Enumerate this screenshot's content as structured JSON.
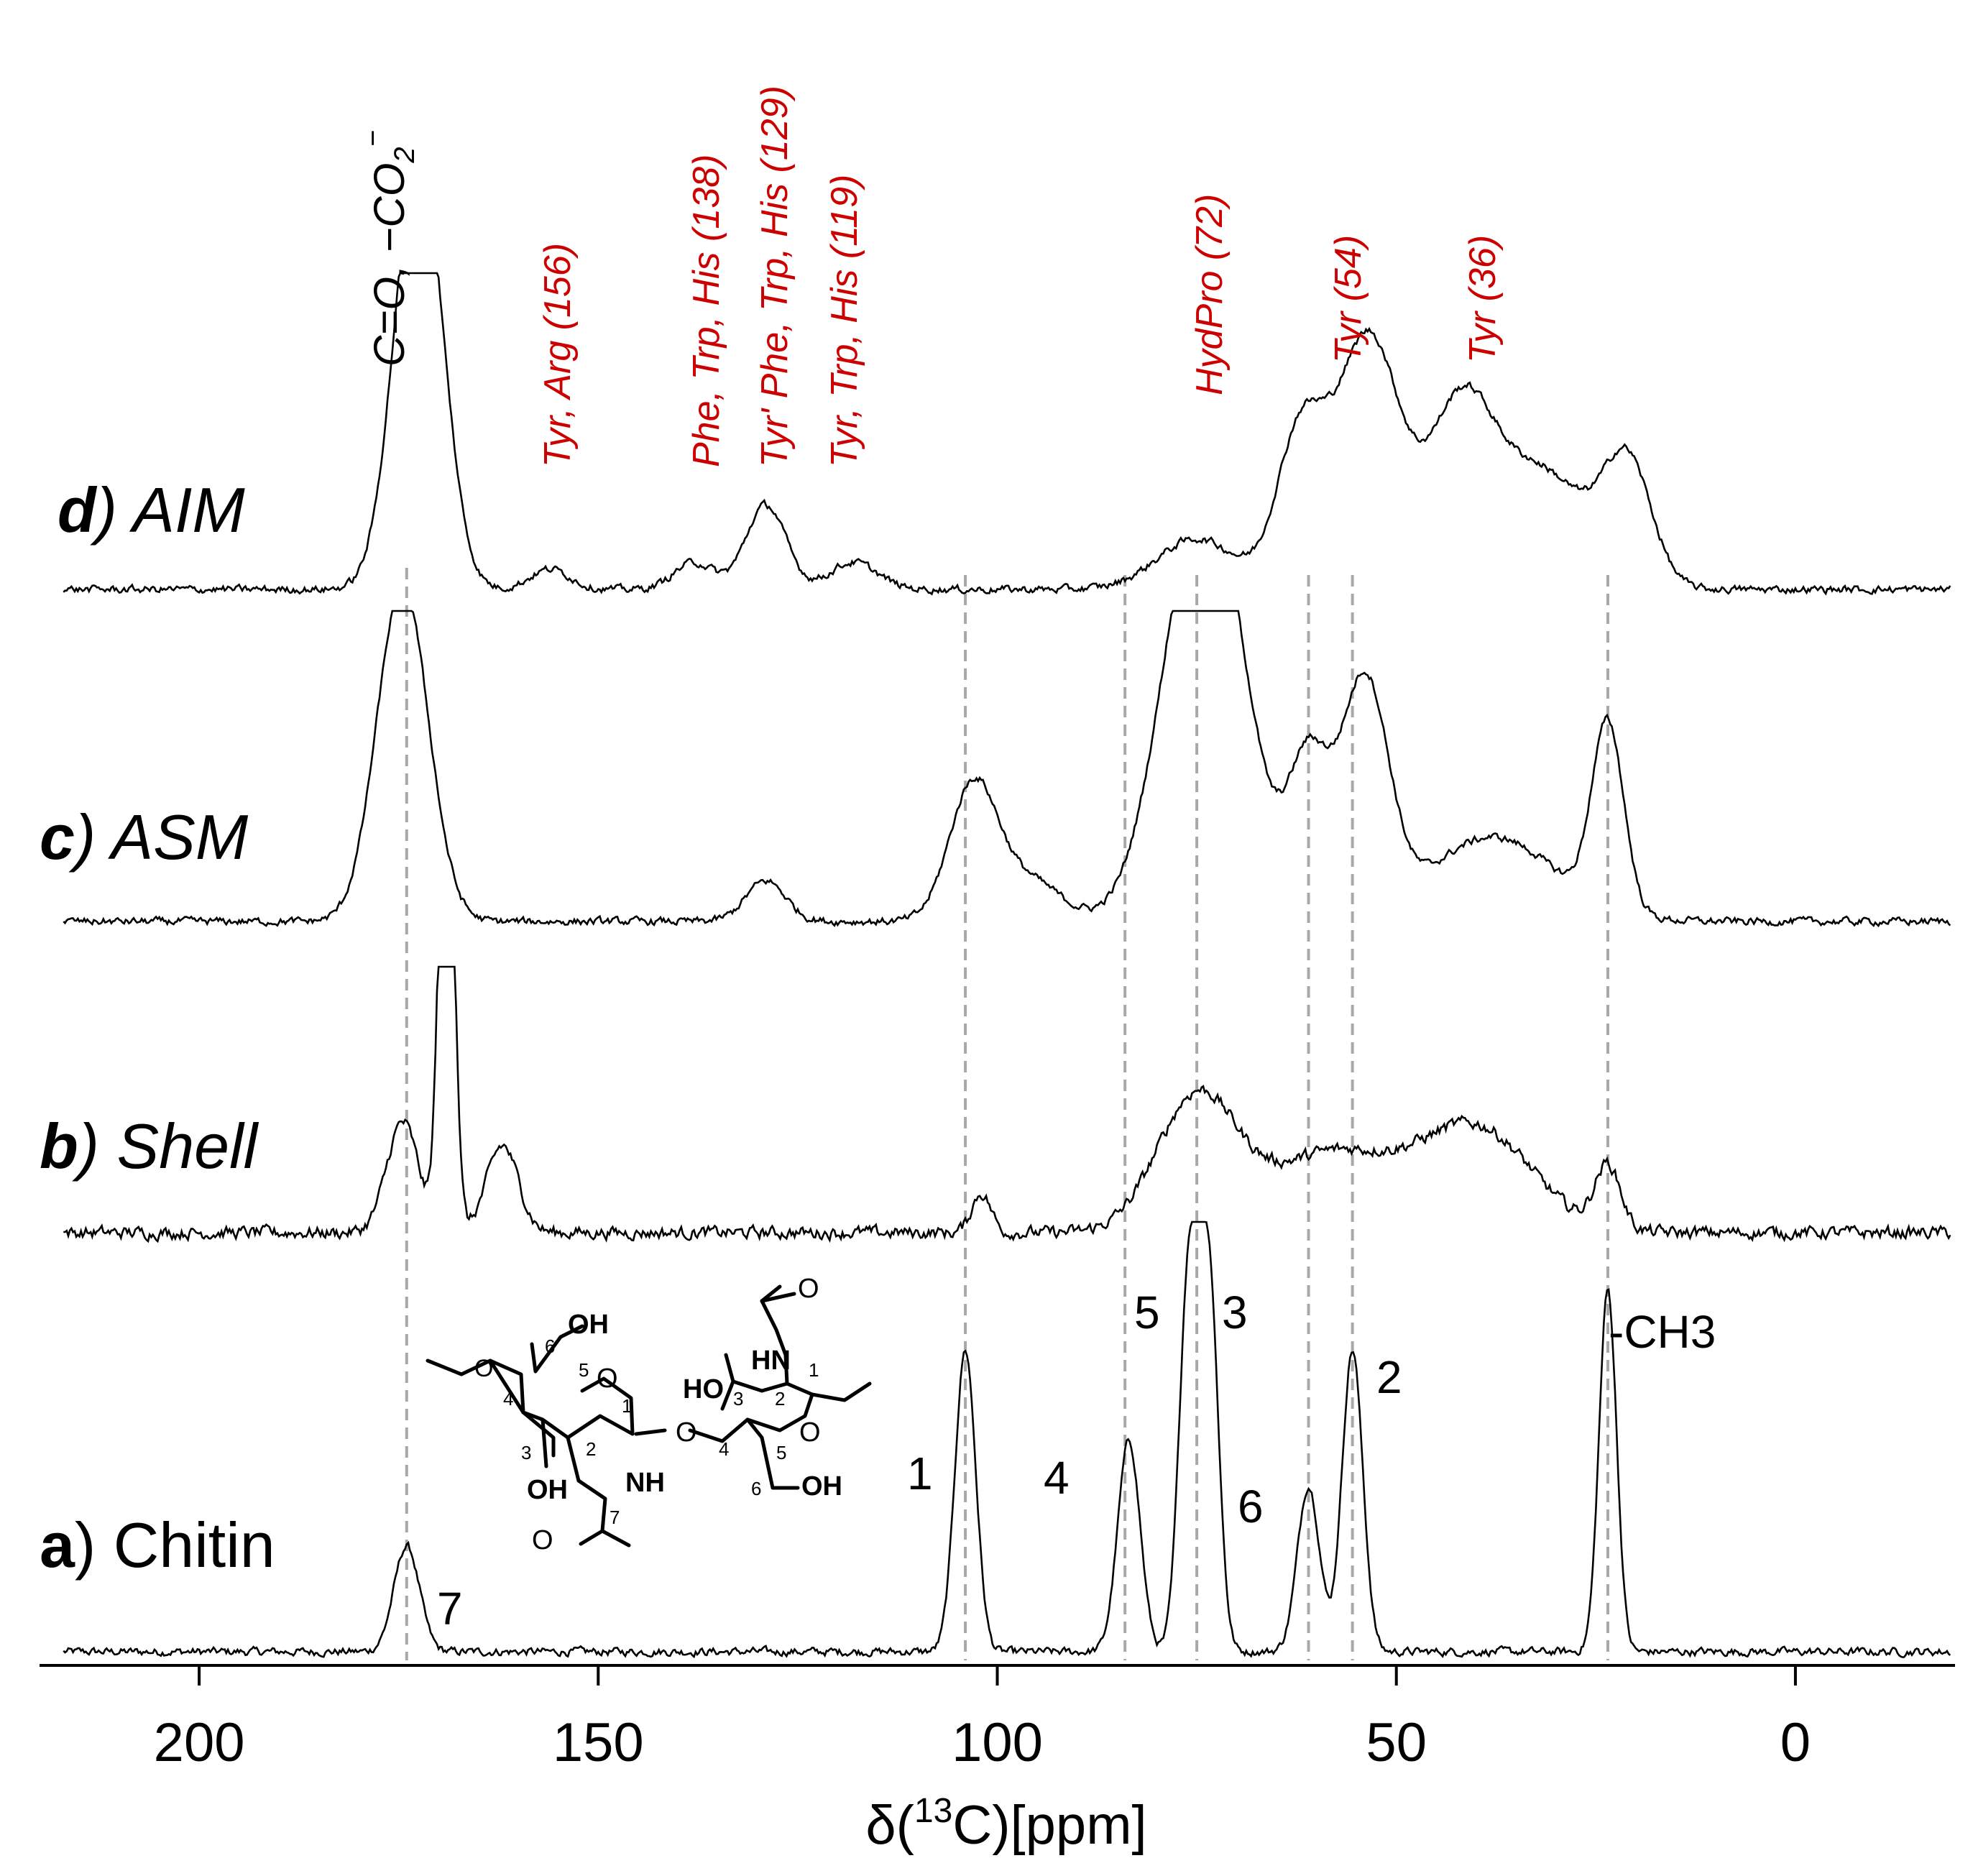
{
  "chart_data": {
    "type": "line",
    "title": "",
    "xlabel": "δ(13C)[ppm]",
    "xlabel_parts": {
      "pre": "δ(",
      "sup": "13",
      "post": "C)[ppm]"
    },
    "xlim": [
      220,
      -20
    ],
    "x_reversed": true,
    "xticks": [
      200,
      150,
      100,
      50,
      0
    ],
    "xtick_labels": [
      "200",
      "150",
      "100",
      "50",
      "0"
    ],
    "reference_lines_ppm": [
      174,
      104,
      84,
      75,
      61,
      55.5,
      23.5
    ],
    "series": [
      {
        "name": "a) Chitin",
        "letter": "a",
        "label": "Chitin",
        "noise": 0.012,
        "peaks": [
          {
            "ppm": 174,
            "height": 0.35,
            "width": 1.6
          },
          {
            "ppm": 104,
            "height": 1.0,
            "width": 1.3
          },
          {
            "ppm": 83.5,
            "height": 0.7,
            "width": 1.4
          },
          {
            "ppm": 76,
            "height": 1.24,
            "width": 1.2
          },
          {
            "ppm": 73.5,
            "height": 1.24,
            "width": 1.2
          },
          {
            "ppm": 61,
            "height": 0.55,
            "width": 1.4
          },
          {
            "ppm": 55.5,
            "height": 1.0,
            "width": 1.3
          },
          {
            "ppm": 23.5,
            "height": 1.2,
            "width": 1.1
          }
        ]
      },
      {
        "name": "b) Shell",
        "letter": "b",
        "label": "Shell",
        "noise": 0.035,
        "peaks": [
          {
            "ppm": 174.5,
            "height": 0.7,
            "width": 2.0
          },
          {
            "ppm": 169,
            "height": 3.5,
            "width": 0.9
          },
          {
            "ppm": 162,
            "height": 0.55,
            "width": 2.0
          },
          {
            "ppm": 102,
            "height": 0.25,
            "width": 1.2
          },
          {
            "ppm": 75,
            "height": 0.85,
            "width": 5.0
          },
          {
            "ppm": 58,
            "height": 0.5,
            "width": 8.0
          },
          {
            "ppm": 40,
            "height": 0.65,
            "width": 7.0
          },
          {
            "ppm": 23.5,
            "height": 0.4,
            "width": 1.6
          }
        ]
      },
      {
        "name": "c) ASM",
        "letter": "c",
        "label": "ASM",
        "noise": 0.01,
        "peaks": [
          {
            "ppm": 174.5,
            "height": 1.0,
            "width": 3.2
          },
          {
            "ppm": 129,
            "height": 0.12,
            "width": 2.5
          },
          {
            "ppm": 103,
            "height": 0.4,
            "width": 3.0
          },
          {
            "ppm": 96,
            "height": 0.12,
            "width": 4.0
          },
          {
            "ppm": 74,
            "height": 1.3,
            "width": 5.0
          },
          {
            "ppm": 61,
            "height": 0.45,
            "width": 2.5
          },
          {
            "ppm": 54,
            "height": 0.7,
            "width": 3.0
          },
          {
            "ppm": 38,
            "height": 0.25,
            "width": 8.0
          },
          {
            "ppm": 23.5,
            "height": 0.55,
            "width": 2.0
          }
        ]
      },
      {
        "name": "d) AIM",
        "letter": "d",
        "label": "AIM",
        "noise": 0.01,
        "peaks": [
          {
            "ppm": 172.5,
            "height": 1.3,
            "width": 3.0
          },
          {
            "ppm": 156,
            "height": 0.06,
            "width": 2.5
          },
          {
            "ppm": 138,
            "height": 0.08,
            "width": 2.5
          },
          {
            "ppm": 129,
            "height": 0.25,
            "width": 2.5
          },
          {
            "ppm": 118,
            "height": 0.08,
            "width": 3.0
          },
          {
            "ppm": 75,
            "height": 0.15,
            "width": 5.0
          },
          {
            "ppm": 62,
            "height": 0.45,
            "width": 3.0
          },
          {
            "ppm": 53.5,
            "height": 0.75,
            "width": 4.0
          },
          {
            "ppm": 42,
            "height": 0.5,
            "width": 4.0
          },
          {
            "ppm": 32,
            "height": 0.35,
            "width": 6.0
          },
          {
            "ppm": 21,
            "height": 0.35,
            "width": 3.0
          }
        ]
      }
    ],
    "top_labels": [
      {
        "id": "carbonyl",
        "ppm": 175,
        "text": "C=O, −CO2⁻",
        "color": "#000000"
      },
      {
        "id": "tyrarg",
        "ppm": 156,
        "text": "Tyr, Arg  (156)",
        "color": "#cc0000"
      },
      {
        "id": "phe",
        "ppm": 138,
        "text": "Phe, Trp, His (138)",
        "color": "#cc0000"
      },
      {
        "id": "tyrphe",
        "ppm": 129,
        "text": "Tyr' Phe, Trp, His (129)",
        "color": "#cc0000"
      },
      {
        "id": "tyrtrp",
        "ppm": 119,
        "text": "Tyr, Trp, His (119)",
        "color": "#cc0000"
      },
      {
        "id": "hydpro",
        "ppm": 72,
        "text": "HydPro  (72)",
        "color": "#cc0000"
      },
      {
        "id": "tyr54",
        "ppm": 54,
        "text": "Tyr (54)",
        "color": "#cc0000"
      },
      {
        "id": "tyr36",
        "ppm": 36,
        "text": "Tyr (36)",
        "color": "#cc0000"
      }
    ],
    "peak_labels": [
      {
        "id": "p7",
        "text": "7"
      },
      {
        "id": "p1",
        "text": "1"
      },
      {
        "id": "p4",
        "text": "4"
      },
      {
        "id": "p5",
        "text": "5"
      },
      {
        "id": "p3",
        "text": "3"
      },
      {
        "id": "p6",
        "text": "6"
      },
      {
        "id": "p2",
        "text": "2"
      },
      {
        "id": "pch3",
        "text": "-CH3"
      }
    ],
    "molecule_labels": {
      "oh_top": "OH",
      "oh_bottom_left": "OH",
      "oh_bottom_right": "OH",
      "nh_left": "NH",
      "hn_right": "HN",
      "ho_right": "HO",
      "o_ring_left": "O",
      "o_ring_right": "O",
      "o_glyco": "O",
      "o_carbonyl_left": "O",
      "o_carbonyl_right": "O",
      "num_l6": "6",
      "num_l5": "5",
      "num_l1": "1",
      "num_l4": "4",
      "num_l3": "3",
      "num_l2": "2",
      "num_l7": "7",
      "num_r3": "3",
      "num_r2": "2",
      "num_r1": "1",
      "num_r4": "4",
      "num_r5": "5",
      "num_r6": "6"
    }
  }
}
